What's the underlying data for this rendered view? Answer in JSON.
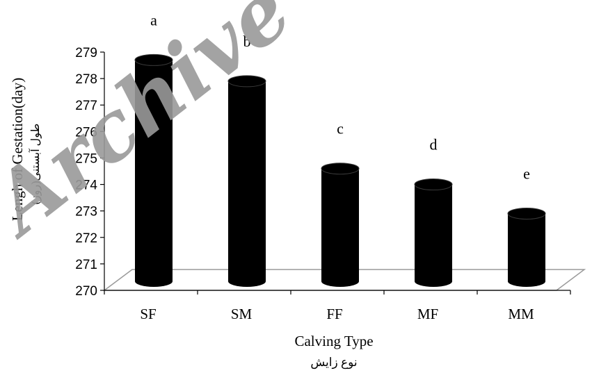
{
  "watermark": "Archive",
  "chart_data": {
    "type": "bar",
    "categories": [
      "SF",
      "SM",
      "FF",
      "MF",
      "MM"
    ],
    "values": [
      278.7,
      277.9,
      274.6,
      274.0,
      272.9
    ],
    "significance_letters": [
      "a",
      "b",
      "c",
      "d",
      "e"
    ],
    "xlabel": "Calving Type",
    "xlabel_fa": "نوع زایش",
    "ylabel": "Lengh of Gestation(day)",
    "ylabel_fa": "طول آبستنی(روز)",
    "ylim": [
      270,
      279
    ],
    "yticks": [
      270,
      271,
      272,
      273,
      274,
      275,
      276,
      277,
      278,
      279
    ],
    "bar_color": "#000000",
    "style": "3d-cylinder"
  }
}
